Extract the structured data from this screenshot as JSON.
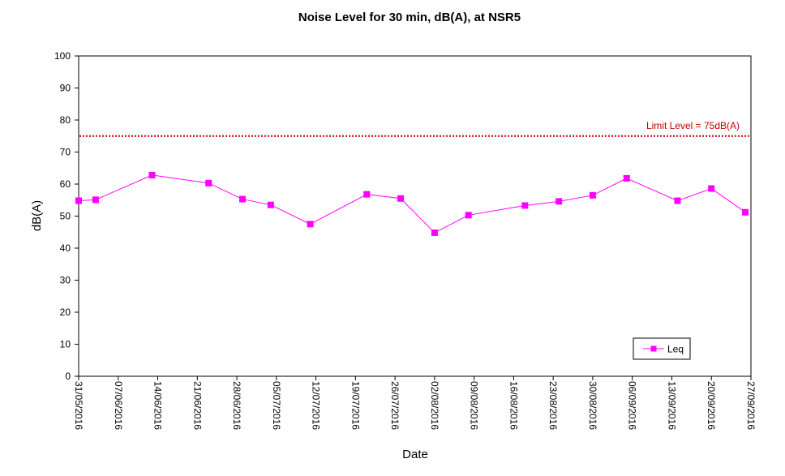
{
  "chart_data": {
    "type": "line",
    "title": "Noise Level for 30 min, dB(A), at NSR5",
    "xlabel": "Date",
    "ylabel": "dB(A)",
    "ylim": [
      0,
      100
    ],
    "y_ticks": [
      0,
      10,
      20,
      30,
      40,
      50,
      60,
      70,
      80,
      90,
      100
    ],
    "x_range": [
      "2016-05-31",
      "2016-09-27"
    ],
    "x_tick_labels": [
      "31/05/2016",
      "07/06/2016",
      "14/06/2016",
      "21/06/2016",
      "28/06/2016",
      "05/07/2016",
      "12/07/2016",
      "19/07/2016",
      "26/07/2016",
      "02/08/2016",
      "09/08/2016",
      "16/08/2016",
      "23/08/2016",
      "30/08/2016",
      "06/09/2016",
      "13/09/2016",
      "20/09/2016",
      "27/09/2016"
    ],
    "grid": false,
    "legend_position": "bottom-right",
    "series": [
      {
        "name": "Leq",
        "color": "#ff00ff",
        "marker": "square",
        "points": [
          {
            "x": "2016-05-31",
            "y": 54.8
          },
          {
            "x": "2016-06-03",
            "y": 55.1
          },
          {
            "x": "2016-06-13",
            "y": 62.8
          },
          {
            "x": "2016-06-23",
            "y": 60.3
          },
          {
            "x": "2016-06-29",
            "y": 55.3
          },
          {
            "x": "2016-07-04",
            "y": 53.5
          },
          {
            "x": "2016-07-11",
            "y": 47.5
          },
          {
            "x": "2016-07-21",
            "y": 56.8
          },
          {
            "x": "2016-07-27",
            "y": 55.5
          },
          {
            "x": "2016-08-02",
            "y": 44.8
          },
          {
            "x": "2016-08-08",
            "y": 50.3
          },
          {
            "x": "2016-08-18",
            "y": 53.3
          },
          {
            "x": "2016-08-24",
            "y": 54.6
          },
          {
            "x": "2016-08-30",
            "y": 56.5
          },
          {
            "x": "2016-09-05",
            "y": 61.8
          },
          {
            "x": "2016-09-14",
            "y": 54.8
          },
          {
            "x": "2016-09-20",
            "y": 58.6
          },
          {
            "x": "2016-09-26",
            "y": 51.2
          }
        ]
      }
    ],
    "reference_line": {
      "value": 75,
      "label": "Limit Level = 75dB(A)",
      "color": "#c00000",
      "style": "dotted"
    }
  }
}
